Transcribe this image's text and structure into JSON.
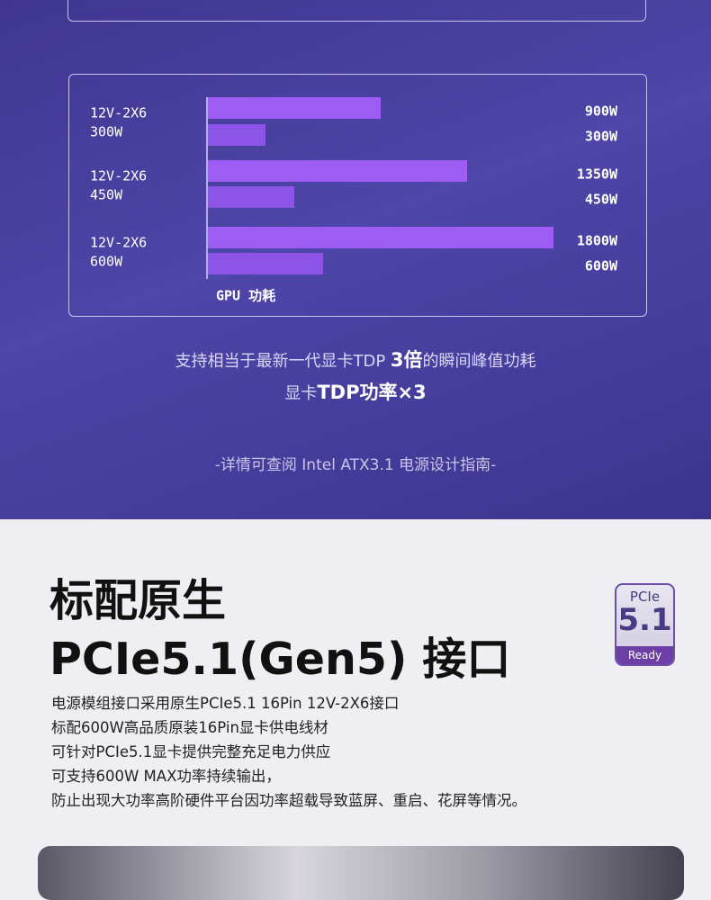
{
  "chart_data": {
    "type": "bar",
    "orientation": "horizontal",
    "categories": [
      [
        "12V-2X6",
        "300W"
      ],
      [
        "12V-2X6",
        "450W"
      ],
      [
        "12V-2X6",
        "600W"
      ]
    ],
    "series": [
      {
        "color": "#9d5cf2",
        "values": [
          900,
          1350,
          1800
        ],
        "value_labels": [
          "900W",
          "1350W",
          "1800W"
        ]
      },
      {
        "color": "#8d54e8",
        "values": [
          300,
          450,
          600
        ],
        "value_labels": [
          "300W",
          "450W",
          "600W"
        ]
      }
    ],
    "xlabel": "GPU 功耗"
  },
  "notes": {
    "line1": [
      "支持相当于最新一代显卡TDP ",
      "3倍",
      "的瞬间峰值功耗"
    ],
    "line2": [
      "显卡",
      "TDP功率×3"
    ],
    "source": "-详情可查阅 Intel ATX3.1 电源设计指南-"
  },
  "section": {
    "title": [
      "标配原生",
      "PCIe5.1(Gen5) 接口"
    ],
    "badge": [
      "PCIe",
      "5.1",
      "Ready"
    ],
    "paragraph": [
      "电源模组接口采用原生PCIe5.1 16Pin 12V-2X6接口",
      "标配600W高品质原装16Pin显卡供电线材",
      "可针对PCIe5.1显卡提供完整充足电力供应",
      "可支持600W MAX功率持续输出，",
      "防止出现大功率高阶硬件平台因功率超载导致蓝屏、重启、花屏等情况。"
    ]
  }
}
